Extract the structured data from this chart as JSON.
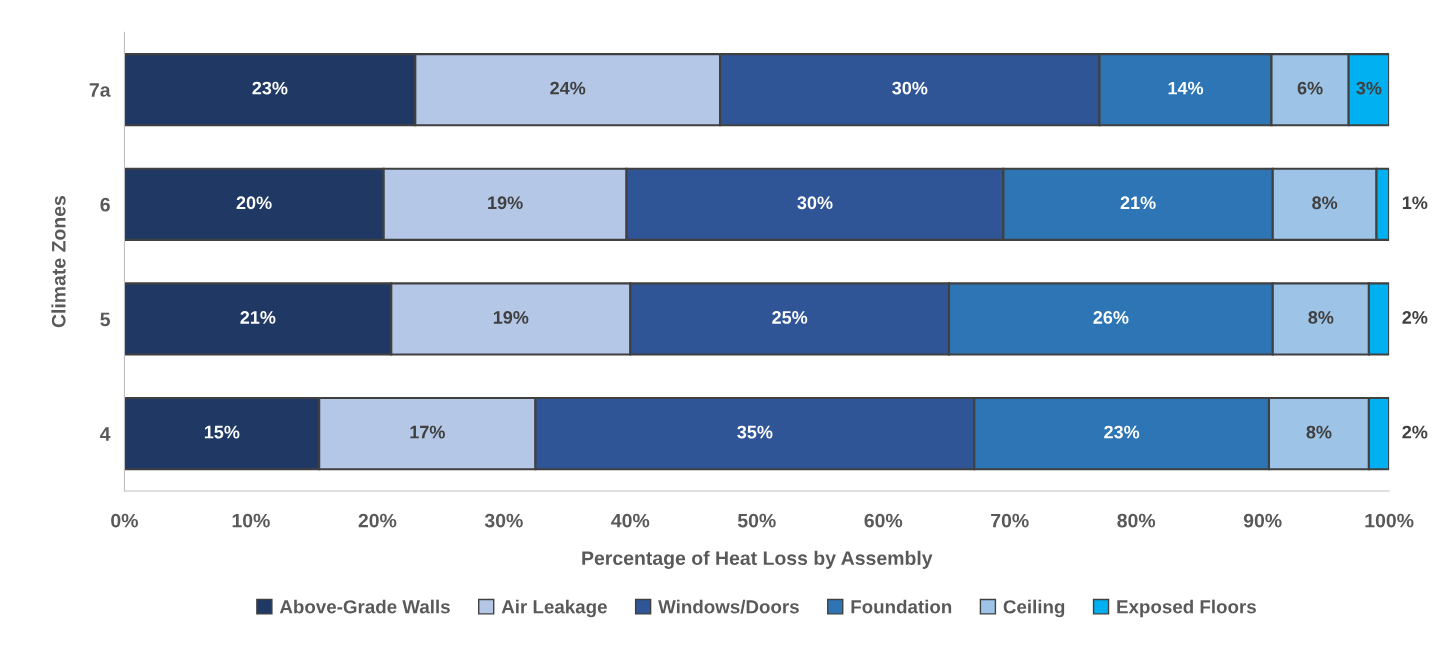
{
  "chart_data": {
    "type": "bar",
    "orientation": "horizontal",
    "stacked": true,
    "xlabel": "Percentage of Heat Loss by Assembly",
    "ylabel": "Climate Zones",
    "categories": [
      "7a",
      "6",
      "5",
      "4"
    ],
    "xlim": [
      0,
      100
    ],
    "xticks": [
      {
        "value": 0,
        "label": "0%"
      },
      {
        "value": 10,
        "label": "10%"
      },
      {
        "value": 20,
        "label": "20%"
      },
      {
        "value": 30,
        "label": "30%"
      },
      {
        "value": 40,
        "label": "40%"
      },
      {
        "value": 50,
        "label": "50%"
      },
      {
        "value": 60,
        "label": "60%"
      },
      {
        "value": 70,
        "label": "70%"
      },
      {
        "value": 80,
        "label": "80%"
      },
      {
        "value": 90,
        "label": "90%"
      },
      {
        "value": 100,
        "label": "100%"
      }
    ],
    "series": [
      {
        "name": "Above-Grade Walls",
        "color": "#1f3864",
        "values": [
          23.0,
          20.5,
          21.1,
          15.4
        ],
        "value_labels": [
          "23%",
          "20%",
          "21%",
          "15%"
        ]
      },
      {
        "name": "Air Leakage",
        "color": "#b4c7e7",
        "values": [
          24.1,
          19.2,
          18.9,
          17.1
        ],
        "value_labels": [
          "24%",
          "19%",
          "19%",
          "17%"
        ]
      },
      {
        "name": "Windows/Doors",
        "color": "#2f5597",
        "values": [
          30.0,
          29.8,
          25.2,
          34.7
        ],
        "value_labels": [
          "30%",
          "30%",
          "25%",
          "35%"
        ]
      },
      {
        "name": "Foundation",
        "color": "#2e75b6",
        "values": [
          13.6,
          21.3,
          25.6,
          23.3
        ],
        "value_labels": [
          "14%",
          "21%",
          "26%",
          "23%"
        ]
      },
      {
        "name": "Ceiling",
        "color": "#9dc3e6",
        "values": [
          6.1,
          8.2,
          7.6,
          7.9
        ],
        "value_labels": [
          "6%",
          "8%",
          "8%",
          "8%"
        ]
      },
      {
        "name": "Exposed Floors",
        "color": "#00b0f0",
        "values": [
          3.2,
          1.0,
          1.6,
          1.6
        ],
        "value_labels": [
          "3%",
          "1%",
          "2%",
          "2%"
        ]
      }
    ],
    "legend": "bottom",
    "grid": false
  }
}
